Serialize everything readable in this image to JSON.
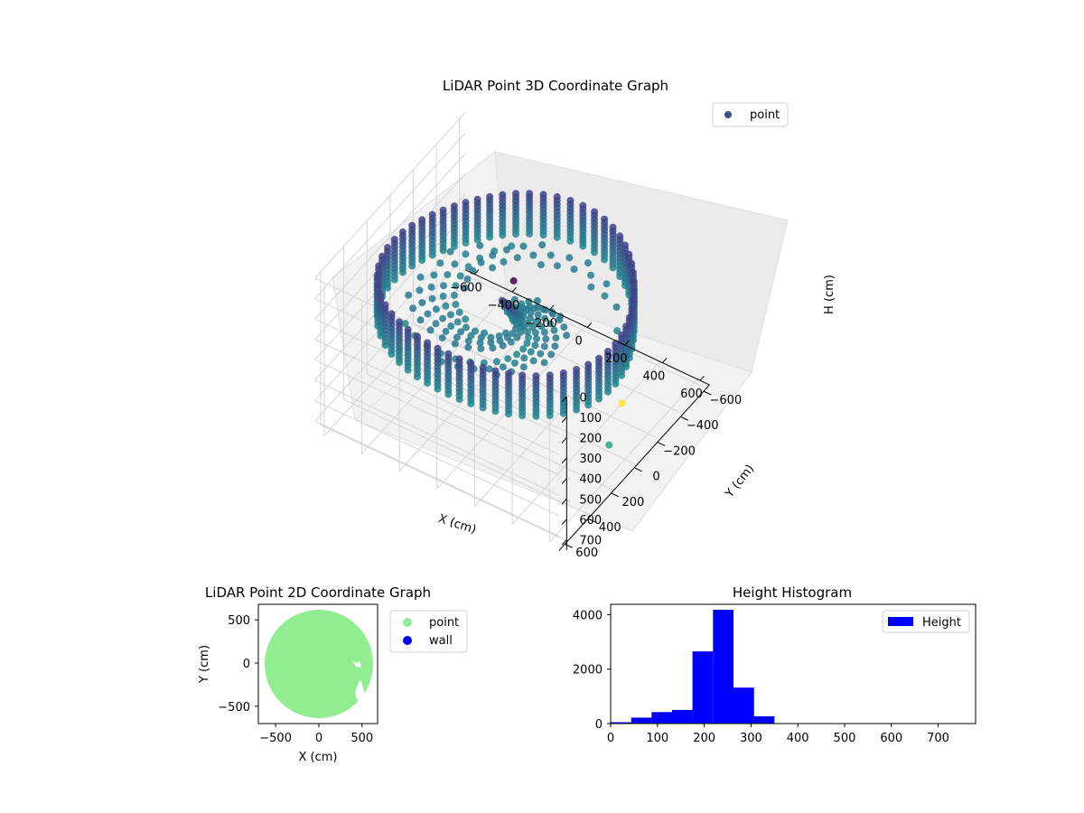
{
  "colors": {
    "point_3d_legend": "#3b528b",
    "point_2d": "#90ee90",
    "wall": "#0000ff",
    "histogram": "#0000ff",
    "colormap": "viridis"
  },
  "chart_data": [
    {
      "type": "scatter",
      "projection": "3d",
      "title": "LiDAR Point 3D Coordinate Graph",
      "xlabel": "X (cm)",
      "ylabel": "Y (cm)",
      "zlabel": "H (cm)",
      "xticks": [
        "−600",
        "−400",
        "−200",
        "0",
        "200",
        "400",
        "600"
      ],
      "yticks": [
        "−600",
        "−400",
        "−200",
        "0",
        "200",
        "400",
        "600"
      ],
      "zticks": [
        "0",
        "100",
        "200",
        "300",
        "400",
        "500",
        "600",
        "700"
      ],
      "xlim": [
        -650,
        650
      ],
      "ylim": [
        -650,
        650
      ],
      "zlim": [
        0,
        750
      ],
      "z_inverted": true,
      "legend": {
        "labels": [
          "point"
        ],
        "placement": "top-right"
      },
      "grid": true,
      "series": [
        {
          "name": "point",
          "description_values": "wall ring radius ~600 cm, heights 150-350 cm colored by height (viridis)",
          "ring_radius": 600,
          "height_range": [
            150,
            350
          ],
          "outliers": [
            {
              "x": 400,
              "y": -300,
              "h": 750
            },
            {
              "x": 700,
              "y": 300,
              "h": 450
            },
            {
              "x": 100,
              "y": 150,
              "h": 0
            }
          ]
        }
      ]
    },
    {
      "type": "scatter",
      "title": "LiDAR Point 2D Coordinate Graph",
      "xlabel": "X (cm)",
      "ylabel": "Y (cm)",
      "xticks": [
        "−500",
        "0",
        "500"
      ],
      "yticks": [
        "500",
        "0",
        "−500"
      ],
      "xlim": [
        -700,
        680
      ],
      "ylim": [
        -700,
        680
      ],
      "legend": {
        "labels": [
          "point",
          "wall"
        ],
        "placement": "outside-right"
      },
      "series": [
        {
          "name": "point",
          "shape": "filled disk",
          "center": [
            0,
            0
          ],
          "radius": 620
        },
        {
          "name": "wall"
        }
      ]
    },
    {
      "type": "bar",
      "title": "Height Histogram",
      "xticks": [
        "0",
        "100",
        "200",
        "300",
        "400",
        "500",
        "600",
        "700"
      ],
      "yticks": [
        "0",
        "2000",
        "4000"
      ],
      "xlim": [
        0,
        780
      ],
      "ylim": [
        0,
        4380
      ],
      "legend": {
        "labels": [
          "Height"
        ],
        "placement": "top-right"
      },
      "series": [
        {
          "name": "Height",
          "bin_edges": [
            0,
            43.75,
            87.5,
            131.25,
            175,
            218.75,
            262.5,
            306.25,
            350,
            393.75,
            437.5,
            481.25,
            525,
            568.75,
            612.5,
            656.25,
            700
          ],
          "values": [
            50,
            220,
            420,
            500,
            2650,
            4180,
            1320,
            270,
            0,
            0,
            0,
            0,
            0,
            0,
            0,
            0
          ]
        }
      ]
    }
  ]
}
